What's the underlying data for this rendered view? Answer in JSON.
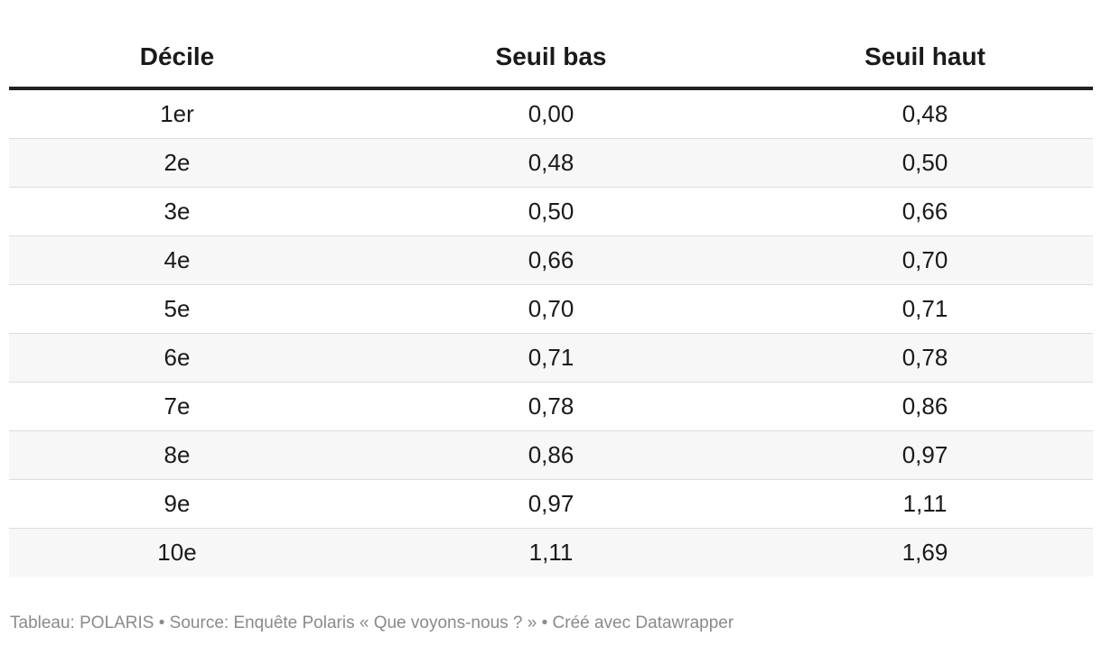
{
  "chart_data": {
    "type": "table",
    "columns": [
      "Décile",
      "Seuil bas",
      "Seuil haut"
    ],
    "rows": [
      [
        "1er",
        "0,00",
        "0,48"
      ],
      [
        "2e",
        "0,48",
        "0,50"
      ],
      [
        "3e",
        "0,50",
        "0,66"
      ],
      [
        "4e",
        "0,66",
        "0,70"
      ],
      [
        "5e",
        "0,70",
        "0,71"
      ],
      [
        "6e",
        "0,71",
        "0,78"
      ],
      [
        "7e",
        "0,78",
        "0,86"
      ],
      [
        "8e",
        "0,86",
        "0,97"
      ],
      [
        "9e",
        "0,97",
        "1,11"
      ],
      [
        "10e",
        "1,11",
        "1,69"
      ]
    ],
    "stripe_color": "#f7f7f7",
    "header_rule_color": "#222222"
  },
  "footer": {
    "text": "Tableau: POLARIS • Source: Enquête Polaris « Que voyons-nous ? » • Créé avec Datawrapper"
  }
}
